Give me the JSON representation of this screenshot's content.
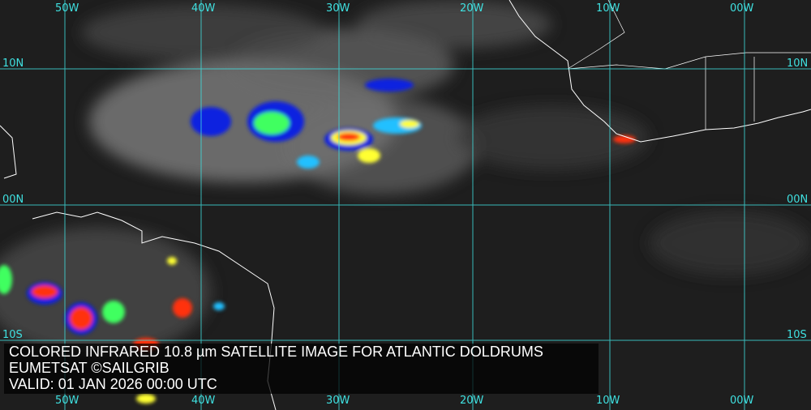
{
  "map": {
    "grid_color": "#3fe0e0",
    "longitude_labels": [
      "50W",
      "40W",
      "30W",
      "20W",
      "10W",
      "00W"
    ],
    "latitude_labels": [
      "10N",
      "00N",
      "10S"
    ],
    "convection_colors": [
      "#1020e0",
      "#20c0ff",
      "#40ff60",
      "#ffff30",
      "#ff3010"
    ]
  },
  "caption": {
    "line1": "COLORED INFRARED 10.8 µm SATELLITE IMAGE FOR ATLANTIC DOLDRUMS",
    "line2": "EUMETSAT ©SAILGRIB",
    "line3": "VALID:  01 JAN 2026 00:00 UTC"
  }
}
